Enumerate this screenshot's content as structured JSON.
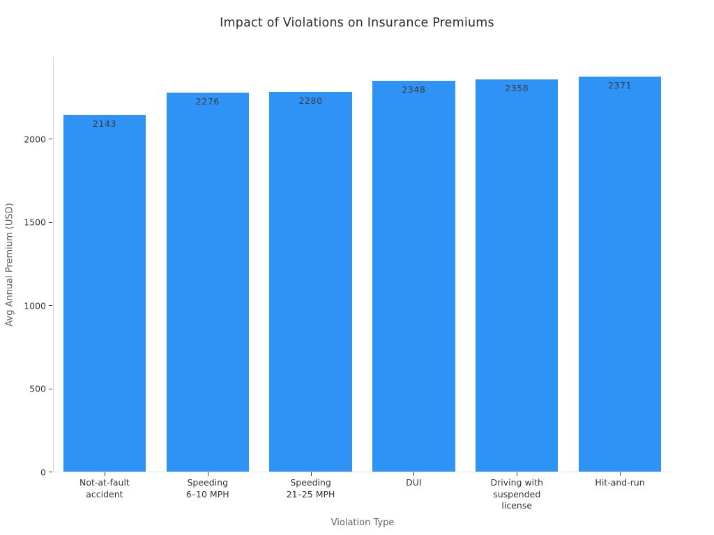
{
  "title": "Impact of Violations on Insurance Premiums",
  "chart_data": {
    "type": "bar",
    "title": "Impact of Violations on Insurance Premiums",
    "xlabel": "Violation Type",
    "ylabel": "Avg Annual Premium (USD)",
    "categories": [
      "Not-at-fault\naccident",
      "Speeding\n6–10 MPH",
      "Speeding\n21–25 MPH",
      "DUI",
      "Driving with\nsuspended\nlicense",
      "Hit-and-run"
    ],
    "values": [
      2143,
      2276,
      2280,
      2348,
      2358,
      2371
    ],
    "value_labels": [
      "2143",
      "2276",
      "2280",
      "2348",
      "2358",
      "2371"
    ],
    "yticks": [
      0,
      500,
      1000,
      1500,
      2000
    ],
    "ylim": [
      0,
      2490
    ],
    "bar_color": "#2e93f5",
    "grid": false,
    "legend": "none"
  }
}
